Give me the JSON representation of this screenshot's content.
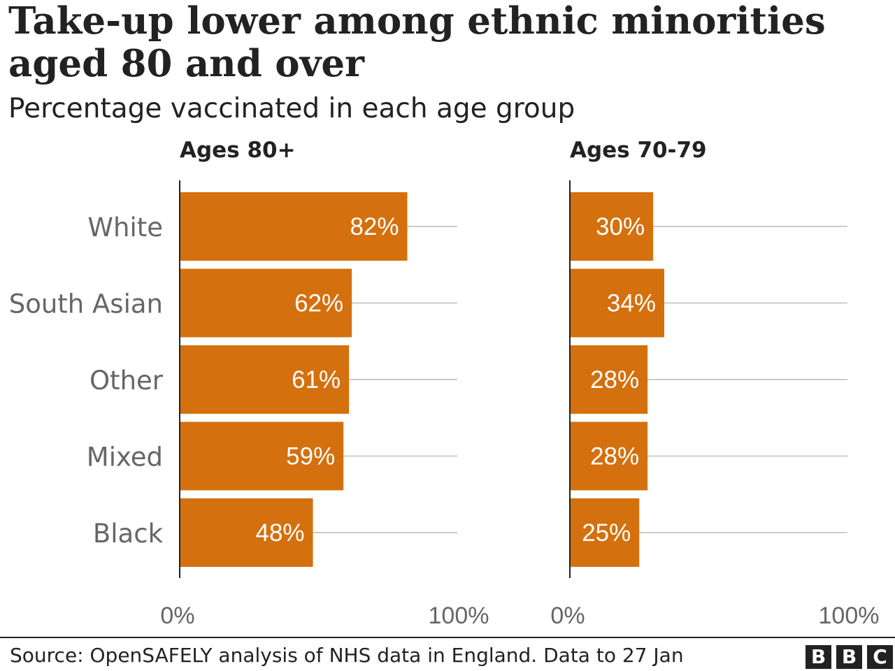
{
  "title": "Take-up lower among ethnic minorities aged 80 and over",
  "subtitle": "Percentage vaccinated in each age group",
  "source": "Source: OpenSAFELY analysis of NHS data in England. Data to 27 Jan",
  "logo": [
    "B",
    "B",
    "C"
  ],
  "colors": {
    "bar": "#d4700e",
    "grid": "#cccccc",
    "axis": "#222222",
    "category_text": "#666666"
  },
  "chart_data": {
    "type": "bar",
    "categories": [
      "White",
      "South Asian",
      "Other",
      "Mixed",
      "Black"
    ],
    "panels": [
      {
        "title": "Ages 80+",
        "values": [
          82,
          62,
          61,
          59,
          48
        ],
        "labels": [
          "82%",
          "62%",
          "61%",
          "59%",
          "48%"
        ]
      },
      {
        "title": "Ages 70-79",
        "values": [
          30,
          34,
          28,
          28,
          25
        ],
        "labels": [
          "30%",
          "34%",
          "28%",
          "28%",
          "25%"
        ]
      }
    ],
    "xlim": [
      0,
      100
    ],
    "x_tick_labels": [
      "0%",
      "100%"
    ]
  }
}
